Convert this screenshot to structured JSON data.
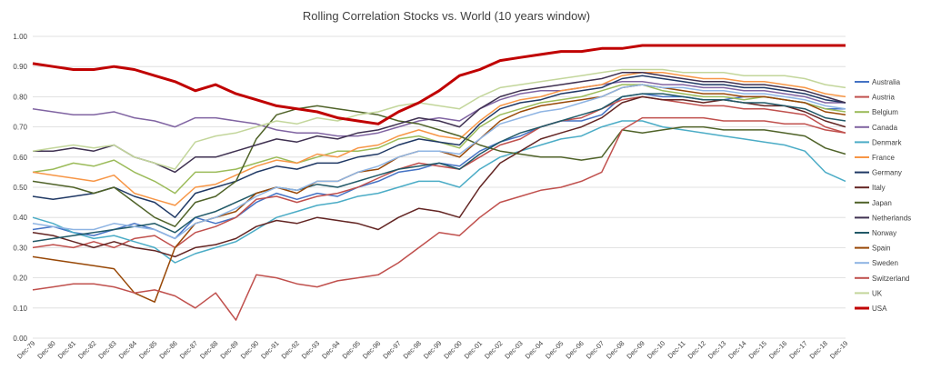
{
  "chart_data": {
    "type": "line",
    "title": "Rolling Correlation Stocks vs. World (10 years window)",
    "xlabel": "",
    "ylabel": "",
    "ylim": [
      0,
      1
    ],
    "yticks": [
      "0.00",
      "0.10",
      "0.20",
      "0.30",
      "0.40",
      "0.50",
      "0.60",
      "0.70",
      "0.80",
      "0.90",
      "1.00"
    ],
    "x": [
      "Dec-79",
      "Dec-80",
      "Dec-81",
      "Dec-82",
      "Dec-83",
      "Dec-84",
      "Dec-85",
      "Dec-86",
      "Dec-87",
      "Dec-88",
      "Dec-89",
      "Dec-90",
      "Dec-91",
      "Dec-92",
      "Dec-93",
      "Dec-94",
      "Dec-95",
      "Dec-96",
      "Dec-97",
      "Dec-98",
      "Dec-99",
      "Dec-00",
      "Dec-01",
      "Dec-02",
      "Dec-03",
      "Dec-04",
      "Dec-05",
      "Dec-06",
      "Dec-07",
      "Dec-08",
      "Dec-09",
      "Dec-10",
      "Dec-11",
      "Dec-12",
      "Dec-13",
      "Dec-14",
      "Dec-15",
      "Dec-16",
      "Dec-17",
      "Dec-18",
      "Dec-19"
    ],
    "grid": true,
    "legend_position": "right",
    "series": [
      {
        "name": "Australia",
        "color": "#4472C4",
        "values": [
          0.36,
          0.37,
          0.35,
          0.34,
          0.36,
          0.38,
          0.36,
          0.33,
          0.4,
          0.38,
          0.4,
          0.45,
          0.48,
          0.46,
          0.48,
          0.47,
          0.5,
          0.52,
          0.55,
          0.56,
          0.58,
          0.57,
          0.62,
          0.65,
          0.67,
          0.7,
          0.72,
          0.72,
          0.74,
          0.8,
          0.81,
          0.8,
          0.8,
          0.79,
          0.79,
          0.8,
          0.8,
          0.79,
          0.78,
          0.76,
          0.76
        ]
      },
      {
        "name": "Austria",
        "color": "#C0504D",
        "values": [
          0.3,
          0.31,
          0.3,
          0.32,
          0.3,
          0.33,
          0.34,
          0.3,
          0.35,
          0.37,
          0.4,
          0.46,
          0.47,
          0.45,
          0.47,
          0.48,
          0.5,
          0.53,
          0.56,
          0.58,
          0.57,
          0.56,
          0.6,
          0.64,
          0.66,
          0.7,
          0.72,
          0.73,
          0.76,
          0.79,
          0.8,
          0.79,
          0.78,
          0.77,
          0.77,
          0.76,
          0.76,
          0.75,
          0.74,
          0.7,
          0.68
        ]
      },
      {
        "name": "Belgium",
        "color": "#9BBB59",
        "values": [
          0.55,
          0.56,
          0.58,
          0.57,
          0.59,
          0.55,
          0.52,
          0.48,
          0.55,
          0.55,
          0.56,
          0.58,
          0.6,
          0.58,
          0.6,
          0.62,
          0.62,
          0.63,
          0.66,
          0.67,
          0.65,
          0.63,
          0.7,
          0.74,
          0.76,
          0.78,
          0.79,
          0.8,
          0.82,
          0.84,
          0.84,
          0.82,
          0.81,
          0.8,
          0.8,
          0.79,
          0.8,
          0.79,
          0.78,
          0.76,
          0.75
        ]
      },
      {
        "name": "Canada",
        "color": "#8064A2",
        "values": [
          0.76,
          0.75,
          0.74,
          0.74,
          0.75,
          0.73,
          0.72,
          0.7,
          0.73,
          0.73,
          0.72,
          0.71,
          0.69,
          0.68,
          0.68,
          0.67,
          0.67,
          0.68,
          0.7,
          0.72,
          0.73,
          0.72,
          0.76,
          0.79,
          0.81,
          0.82,
          0.82,
          0.83,
          0.84,
          0.85,
          0.85,
          0.84,
          0.84,
          0.83,
          0.83,
          0.82,
          0.82,
          0.81,
          0.8,
          0.78,
          0.78
        ]
      },
      {
        "name": "Denmark",
        "color": "#4BACC6",
        "values": [
          0.4,
          0.38,
          0.35,
          0.33,
          0.34,
          0.32,
          0.3,
          0.25,
          0.28,
          0.3,
          0.32,
          0.36,
          0.4,
          0.42,
          0.44,
          0.45,
          0.47,
          0.48,
          0.5,
          0.52,
          0.52,
          0.5,
          0.56,
          0.6,
          0.62,
          0.64,
          0.66,
          0.67,
          0.7,
          0.72,
          0.72,
          0.7,
          0.69,
          0.68,
          0.67,
          0.66,
          0.65,
          0.64,
          0.62,
          0.55,
          0.52
        ]
      },
      {
        "name": "France",
        "color": "#F79646",
        "values": [
          0.55,
          0.54,
          0.53,
          0.52,
          0.54,
          0.48,
          0.46,
          0.44,
          0.5,
          0.51,
          0.54,
          0.57,
          0.59,
          0.58,
          0.61,
          0.6,
          0.63,
          0.64,
          0.67,
          0.69,
          0.67,
          0.66,
          0.72,
          0.77,
          0.79,
          0.8,
          0.82,
          0.83,
          0.84,
          0.87,
          0.88,
          0.88,
          0.87,
          0.86,
          0.86,
          0.85,
          0.85,
          0.84,
          0.83,
          0.81,
          0.8
        ]
      },
      {
        "name": "Germany",
        "color": "#1F3864",
        "values": [
          0.47,
          0.46,
          0.47,
          0.48,
          0.5,
          0.47,
          0.45,
          0.4,
          0.48,
          0.5,
          0.52,
          0.55,
          0.57,
          0.56,
          0.58,
          0.58,
          0.6,
          0.61,
          0.64,
          0.66,
          0.65,
          0.64,
          0.71,
          0.76,
          0.78,
          0.79,
          0.81,
          0.82,
          0.83,
          0.86,
          0.87,
          0.86,
          0.85,
          0.84,
          0.84,
          0.83,
          0.83,
          0.82,
          0.81,
          0.79,
          0.78
        ]
      },
      {
        "name": "Italy",
        "color": "#632523",
        "values": [
          0.35,
          0.34,
          0.32,
          0.3,
          0.32,
          0.3,
          0.29,
          0.27,
          0.3,
          0.31,
          0.33,
          0.37,
          0.39,
          0.38,
          0.4,
          0.39,
          0.38,
          0.36,
          0.4,
          0.43,
          0.42,
          0.4,
          0.5,
          0.58,
          0.62,
          0.66,
          0.68,
          0.7,
          0.73,
          0.78,
          0.8,
          0.79,
          0.79,
          0.78,
          0.79,
          0.78,
          0.77,
          0.77,
          0.75,
          0.72,
          0.7
        ]
      },
      {
        "name": "Japan",
        "color": "#4F6228",
        "values": [
          0.52,
          0.51,
          0.5,
          0.48,
          0.5,
          0.45,
          0.4,
          0.37,
          0.45,
          0.47,
          0.52,
          0.66,
          0.74,
          0.76,
          0.77,
          0.76,
          0.75,
          0.74,
          0.72,
          0.71,
          0.69,
          0.67,
          0.64,
          0.62,
          0.61,
          0.6,
          0.6,
          0.59,
          0.6,
          0.69,
          0.68,
          0.69,
          0.7,
          0.7,
          0.69,
          0.69,
          0.69,
          0.68,
          0.67,
          0.63,
          0.61
        ]
      },
      {
        "name": "Netherlands",
        "color": "#3F3151",
        "values": [
          0.62,
          0.62,
          0.63,
          0.62,
          0.64,
          0.6,
          0.58,
          0.55,
          0.6,
          0.6,
          0.62,
          0.64,
          0.66,
          0.65,
          0.67,
          0.66,
          0.68,
          0.69,
          0.71,
          0.73,
          0.72,
          0.7,
          0.76,
          0.8,
          0.82,
          0.83,
          0.84,
          0.85,
          0.86,
          0.88,
          0.88,
          0.87,
          0.86,
          0.85,
          0.85,
          0.84,
          0.84,
          0.83,
          0.82,
          0.8,
          0.78
        ]
      },
      {
        "name": "Norway",
        "color": "#215967",
        "values": [
          0.32,
          0.33,
          0.34,
          0.35,
          0.36,
          0.37,
          0.38,
          0.35,
          0.4,
          0.42,
          0.45,
          0.48,
          0.5,
          0.49,
          0.51,
          0.5,
          0.52,
          0.54,
          0.56,
          0.57,
          0.58,
          0.56,
          0.61,
          0.65,
          0.68,
          0.7,
          0.72,
          0.74,
          0.76,
          0.8,
          0.81,
          0.81,
          0.8,
          0.79,
          0.79,
          0.78,
          0.78,
          0.77,
          0.76,
          0.73,
          0.72
        ]
      },
      {
        "name": "Spain",
        "color": "#984807",
        "values": [
          0.27,
          0.26,
          0.25,
          0.24,
          0.23,
          0.15,
          0.12,
          0.3,
          0.38,
          0.4,
          0.42,
          0.48,
          0.5,
          0.48,
          0.52,
          0.52,
          0.55,
          0.56,
          0.6,
          0.62,
          0.62,
          0.6,
          0.66,
          0.72,
          0.75,
          0.77,
          0.78,
          0.79,
          0.8,
          0.83,
          0.84,
          0.83,
          0.82,
          0.81,
          0.81,
          0.8,
          0.8,
          0.79,
          0.78,
          0.75,
          0.74
        ]
      },
      {
        "name": "Sweden",
        "color": "#8EB4E3",
        "values": [
          0.38,
          0.37,
          0.36,
          0.36,
          0.38,
          0.37,
          0.36,
          0.33,
          0.38,
          0.4,
          0.43,
          0.47,
          0.5,
          0.49,
          0.52,
          0.52,
          0.55,
          0.57,
          0.6,
          0.62,
          0.62,
          0.61,
          0.66,
          0.71,
          0.73,
          0.75,
          0.76,
          0.78,
          0.8,
          0.83,
          0.84,
          0.83,
          0.83,
          0.82,
          0.82,
          0.81,
          0.81,
          0.8,
          0.79,
          0.77,
          0.76
        ]
      },
      {
        "name": "Switzerland",
        "color": "#C0504D",
        "values": [
          0.16,
          0.17,
          0.18,
          0.18,
          0.17,
          0.15,
          0.16,
          0.14,
          0.1,
          0.15,
          0.06,
          0.21,
          0.2,
          0.18,
          0.17,
          0.19,
          0.2,
          0.21,
          0.25,
          0.3,
          0.35,
          0.34,
          0.4,
          0.45,
          0.47,
          0.49,
          0.5,
          0.52,
          0.55,
          0.69,
          0.73,
          0.73,
          0.73,
          0.73,
          0.72,
          0.72,
          0.72,
          0.71,
          0.71,
          0.69,
          0.68
        ]
      },
      {
        "name": "UK",
        "color": "#C3D69B",
        "values": [
          0.62,
          0.63,
          0.64,
          0.63,
          0.64,
          0.6,
          0.58,
          0.56,
          0.65,
          0.67,
          0.68,
          0.7,
          0.72,
          0.71,
          0.73,
          0.72,
          0.74,
          0.75,
          0.77,
          0.78,
          0.77,
          0.76,
          0.8,
          0.83,
          0.84,
          0.85,
          0.86,
          0.87,
          0.88,
          0.89,
          0.89,
          0.89,
          0.88,
          0.88,
          0.88,
          0.87,
          0.87,
          0.87,
          0.86,
          0.84,
          0.83
        ]
      },
      {
        "name": "USA",
        "color": "#C00000",
        "width": 3,
        "values": [
          0.91,
          0.9,
          0.89,
          0.89,
          0.9,
          0.89,
          0.87,
          0.85,
          0.82,
          0.84,
          0.81,
          0.79,
          0.77,
          0.76,
          0.75,
          0.73,
          0.72,
          0.71,
          0.75,
          0.78,
          0.82,
          0.87,
          0.89,
          0.92,
          0.93,
          0.94,
          0.95,
          0.95,
          0.96,
          0.96,
          0.97,
          0.97,
          0.97,
          0.97,
          0.97,
          0.97,
          0.97,
          0.97,
          0.97,
          0.97,
          0.97
        ]
      }
    ]
  }
}
